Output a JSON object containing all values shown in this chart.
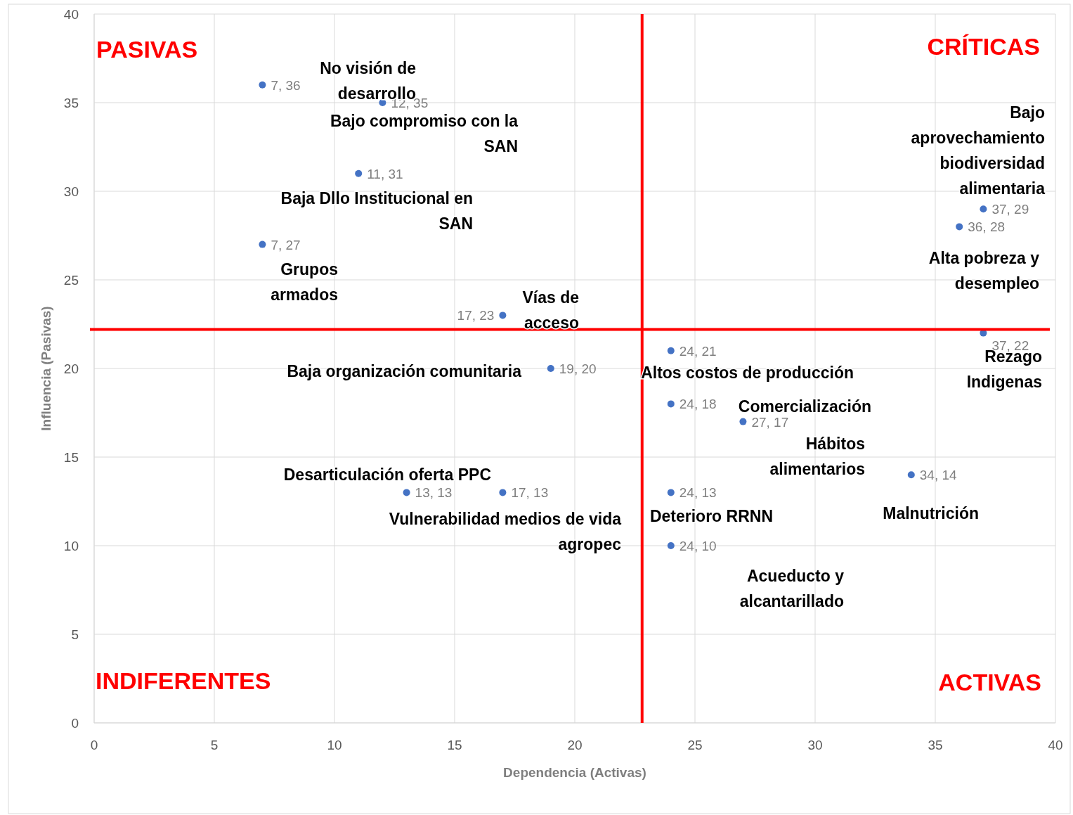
{
  "chart_data": {
    "type": "scatter",
    "xlabel": "Dependencia (Activas)",
    "ylabel": "Influencia (Pasivas)",
    "x": [
      7,
      12,
      11,
      7,
      17,
      19,
      24,
      24,
      27,
      34,
      13,
      17,
      24,
      24,
      37,
      36,
      37
    ],
    "series": [
      {
        "color": "#4472c4",
        "values": [
          36,
          35,
          31,
          27,
          23,
          20,
          21,
          18,
          17,
          14,
          13,
          13,
          13,
          10,
          29,
          28,
          22
        ]
      }
    ],
    "xlim": [
      0,
      40
    ],
    "xticks": [
      0,
      5,
      10,
      15,
      20,
      25,
      30,
      35,
      40
    ],
    "ylim": [
      0,
      40
    ],
    "yticks": [
      0,
      5,
      10,
      15,
      20,
      25,
      30,
      35,
      40
    ],
    "value_labels": [
      "7, 36",
      "12, 35",
      "11, 31",
      "7, 27",
      "17, 23",
      "19, 20",
      "24, 21",
      "24, 18",
      "27, 17",
      "34, 14",
      "13, 13",
      "17, 13",
      "24, 13",
      "24, 10",
      "37, 29",
      "36, 28",
      "37, 22"
    ],
    "grid": true,
    "marker": "circle",
    "ref_lines": [
      {
        "axis": "x",
        "value": 22.8,
        "color": "#ff0000"
      },
      {
        "axis": "y",
        "value": 22.2,
        "color": "#ff0000"
      }
    ],
    "annotations": [
      "PASIVAS",
      "CRÍTICAS",
      "INDIFERENTES",
      "ACTIVAS",
      "No visión de desarrollo",
      "Bajo compromiso con la SAN",
      "Baja Dllo Institucional en SAN",
      "Grupos armados",
      "Vías de acceso",
      "Baja organización comunitaria",
      "Altos costos de producción",
      "Comercialización",
      "Hábitos alimentarios",
      "Desarticulación oferta PPC",
      "Vulnerabilidad medios de vida agropec",
      "Deterioro RRNN",
      "Acueducto y alcantarillado",
      "Malnutrición",
      "Bajo aprovechamiento biodiversidad alimentaria",
      "Alta pobreza y desempleo",
      "Rezago Indigenas"
    ]
  }
}
